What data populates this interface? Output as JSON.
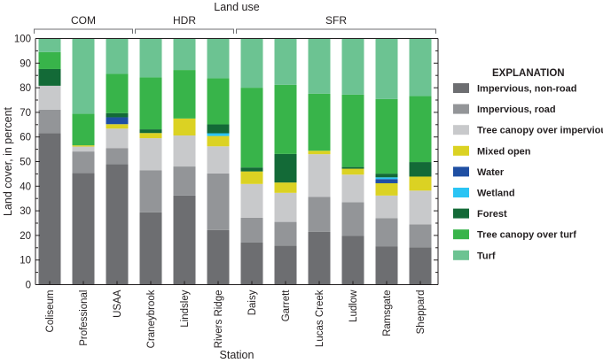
{
  "chart_data": {
    "type": "bar",
    "stacked": true,
    "title": "Land use",
    "xlabel": "Station",
    "ylabel": "Land cover, in percent",
    "ylim": [
      0,
      100
    ],
    "yticks": [
      "0",
      "10",
      "20",
      "30",
      "40",
      "50",
      "60",
      "70",
      "80",
      "90",
      "100"
    ],
    "groups": [
      {
        "name": "COM",
        "categories": [
          "Coliseum",
          "Professional",
          "USAA"
        ]
      },
      {
        "name": "HDR",
        "categories": [
          "Craneybrook",
          "Lindsley",
          "Rivers Ridge"
        ]
      },
      {
        "name": "SFR",
        "categories": [
          "Daisy",
          "Garrett",
          "Lucas Creek",
          "Ludlow",
          "Ramsgate",
          "Sheppard"
        ]
      }
    ],
    "categories": [
      "Coliseum",
      "Professional",
      "USAA",
      "Craneybrook",
      "Lindsley",
      "Rivers Ridge",
      "Daisy",
      "Garrett",
      "Lucas Creek",
      "Ludlow",
      "Ramsgate",
      "Sheppard"
    ],
    "legend_title": "EXPLANATION",
    "legend_position": "right",
    "series": [
      {
        "name": "Impervious, non-road",
        "color": "#6d6e71",
        "values": [
          61.6,
          45.4,
          48.9,
          29.4,
          36.2,
          22.2,
          17.1,
          15.8,
          21.5,
          19.9,
          15.6,
          15.2
        ]
      },
      {
        "name": "Impervious, road",
        "color": "#939598",
        "values": [
          9.5,
          8.7,
          6.6,
          17.1,
          11.8,
          23.0,
          10.1,
          9.7,
          14.2,
          13.6,
          11.4,
          9.3
        ]
      },
      {
        "name": "Tree canopy over impervious",
        "color": "#c8c9cb",
        "values": [
          9.7,
          2.0,
          7.9,
          13.0,
          12.6,
          11.0,
          13.7,
          11.8,
          17.3,
          11.2,
          9.2,
          13.7
        ]
      },
      {
        "name": "Mixed open",
        "color": "#dbd223",
        "values": [
          0,
          0.5,
          1.8,
          2.1,
          6.9,
          4.2,
          5.1,
          4.2,
          1.4,
          2.4,
          5.0,
          5.7
        ]
      },
      {
        "name": "Water",
        "color": "#1f4fa3",
        "values": [
          0,
          0,
          2.8,
          0,
          0,
          0,
          0,
          0,
          0,
          0,
          1.7,
          0
        ]
      },
      {
        "name": "Wetland",
        "color": "#2ac4f4",
        "values": [
          0,
          0,
          0,
          0,
          0,
          1.1,
          0,
          0,
          0,
          0,
          0.7,
          0
        ]
      },
      {
        "name": "Forest",
        "color": "#136a37",
        "values": [
          6.8,
          0,
          1.7,
          1.5,
          0,
          3.6,
          1.6,
          11.6,
          0,
          0.7,
          1.5,
          5.9
        ]
      },
      {
        "name": "Tree canopy over turf",
        "color": "#38b44a",
        "values": [
          6.9,
          12.8,
          15.9,
          21.1,
          19.7,
          18.7,
          32.4,
          28.1,
          23.2,
          29.4,
          30.3,
          26.8
        ]
      },
      {
        "name": "Turf",
        "color": "#6cc392",
        "values": [
          5.5,
          30.6,
          14.4,
          15.8,
          12.8,
          16.2,
          20.0,
          18.8,
          22.4,
          22.8,
          24.6,
          23.4
        ]
      }
    ]
  }
}
